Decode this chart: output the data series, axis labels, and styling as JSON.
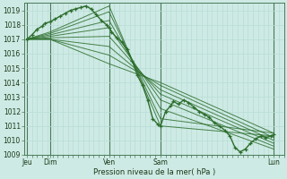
{
  "xlabel": "Pression niveau de la mer( hPa )",
  "bg_color": "#ceeae4",
  "plot_bg_color": "#ceeae4",
  "grid_major_color": "#b0d8d0",
  "grid_minor_color": "#b8dcd6",
  "line_color": "#2d6e2d",
  "y_min": 1009,
  "y_max": 1019.5,
  "y_ticks": [
    1009,
    1010,
    1011,
    1012,
    1013,
    1014,
    1015,
    1016,
    1017,
    1018,
    1019
  ],
  "x_tick_labels": [
    "Jeu",
    "Dim",
    "Ven",
    "Sam",
    "Lun"
  ],
  "x_tick_positions": [
    0.0,
    0.09,
    0.32,
    0.52,
    0.96
  ],
  "vline_positions": [
    0.0,
    0.09,
    0.32,
    0.52,
    0.96
  ],
  "ensemble_lines": [
    [
      [
        0.0,
        1017.0
      ],
      [
        0.09,
        1017.5
      ],
      [
        0.32,
        1019.3
      ],
      [
        0.52,
        1011.0
      ],
      [
        0.96,
        1010.3
      ]
    ],
    [
      [
        0.0,
        1017.0
      ],
      [
        0.09,
        1017.4
      ],
      [
        0.32,
        1018.9
      ],
      [
        0.52,
        1011.5
      ],
      [
        0.96,
        1010.5
      ]
    ],
    [
      [
        0.0,
        1017.0
      ],
      [
        0.09,
        1017.3
      ],
      [
        0.32,
        1018.3
      ],
      [
        0.52,
        1012.2
      ],
      [
        0.96,
        1009.4
      ]
    ],
    [
      [
        0.0,
        1017.0
      ],
      [
        0.09,
        1017.2
      ],
      [
        0.32,
        1017.8
      ],
      [
        0.52,
        1012.8
      ],
      [
        0.96,
        1009.6
      ]
    ],
    [
      [
        0.0,
        1017.0
      ],
      [
        0.09,
        1017.1
      ],
      [
        0.32,
        1017.2
      ],
      [
        0.52,
        1013.2
      ],
      [
        0.96,
        1009.8
      ]
    ],
    [
      [
        0.0,
        1017.0
      ],
      [
        0.09,
        1017.0
      ],
      [
        0.32,
        1016.5
      ],
      [
        0.52,
        1013.5
      ],
      [
        0.96,
        1010.0
      ]
    ],
    [
      [
        0.0,
        1017.0
      ],
      [
        0.09,
        1017.0
      ],
      [
        0.32,
        1015.9
      ],
      [
        0.52,
        1013.8
      ],
      [
        0.96,
        1010.2
      ]
    ],
    [
      [
        0.0,
        1017.0
      ],
      [
        0.09,
        1017.0
      ],
      [
        0.32,
        1015.3
      ],
      [
        0.52,
        1014.0
      ],
      [
        0.96,
        1010.5
      ]
    ]
  ],
  "main_line_x": [
    0.0,
    0.02,
    0.04,
    0.06,
    0.07,
    0.09,
    0.11,
    0.13,
    0.15,
    0.17,
    0.19,
    0.21,
    0.23,
    0.25,
    0.27,
    0.29,
    0.31,
    0.32,
    0.33,
    0.35,
    0.37,
    0.39,
    0.41,
    0.43,
    0.45,
    0.47,
    0.49,
    0.51,
    0.52,
    0.54,
    0.56,
    0.57,
    0.59,
    0.61,
    0.63,
    0.65,
    0.67,
    0.69,
    0.71,
    0.73,
    0.75,
    0.77,
    0.79,
    0.81,
    0.83,
    0.85,
    0.87,
    0.89,
    0.91,
    0.93,
    0.95,
    0.96
  ],
  "main_line_y": [
    1017.0,
    1017.3,
    1017.7,
    1017.9,
    1018.1,
    1018.2,
    1018.4,
    1018.6,
    1018.8,
    1019.0,
    1019.1,
    1019.2,
    1019.3,
    1019.1,
    1018.7,
    1018.3,
    1018.0,
    1017.8,
    1017.5,
    1017.1,
    1016.8,
    1016.3,
    1015.5,
    1014.5,
    1013.8,
    1012.8,
    1011.5,
    1011.1,
    1011.0,
    1012.0,
    1012.4,
    1012.7,
    1012.5,
    1012.8,
    1012.6,
    1012.3,
    1012.0,
    1011.8,
    1011.6,
    1011.2,
    1011.0,
    1010.7,
    1010.3,
    1009.5,
    1009.2,
    1009.4,
    1009.8,
    1010.1,
    1010.3,
    1010.2,
    1010.3,
    1010.4
  ]
}
